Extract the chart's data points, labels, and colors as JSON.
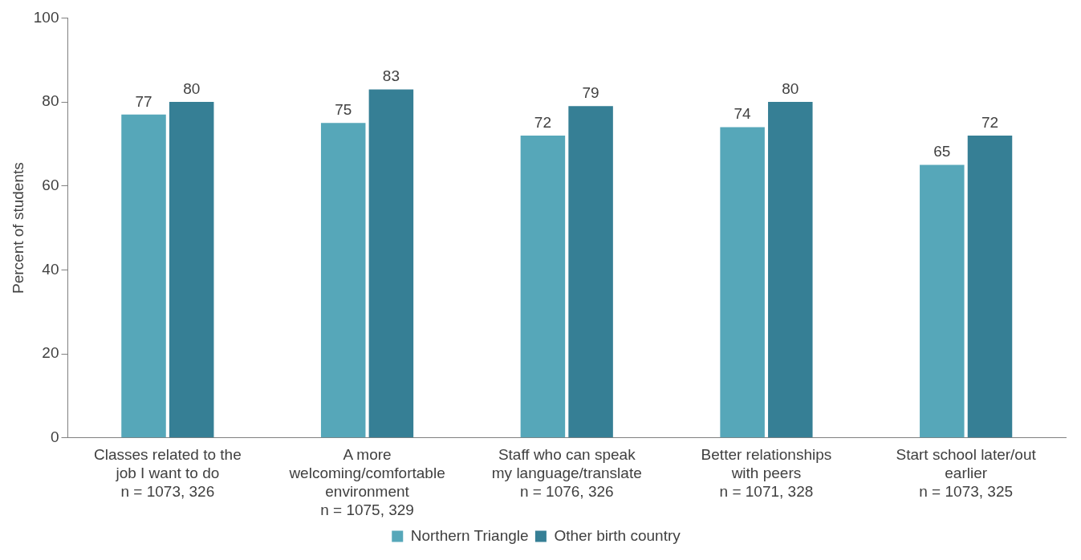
{
  "chart_data": {
    "type": "bar",
    "ylabel": "Percent of students",
    "categories": [
      "Classes related to the\njob I want to do\nn = 1073, 326",
      "A more\nwelcoming/comfortable\nenvironment\nn = 1075, 329",
      "Staff who can speak\nmy language/translate\nn = 1076, 326",
      "Better relationships\nwith peers\nn = 1071, 328",
      "Start school later/out\nearlier\nn = 1073, 325"
    ],
    "series": [
      {
        "name": "Northern Triangle",
        "color": "#56a7b9",
        "values": [
          77,
          75,
          72,
          74,
          65
        ]
      },
      {
        "name": "Other birth country",
        "color": "#367f95",
        "values": [
          80,
          83,
          79,
          80,
          72
        ]
      }
    ],
    "ylim": [
      0,
      100
    ],
    "yticks": [
      0,
      20,
      40,
      60,
      80,
      100
    ],
    "grid": false,
    "legend": "bottom",
    "data_labels": true
  }
}
